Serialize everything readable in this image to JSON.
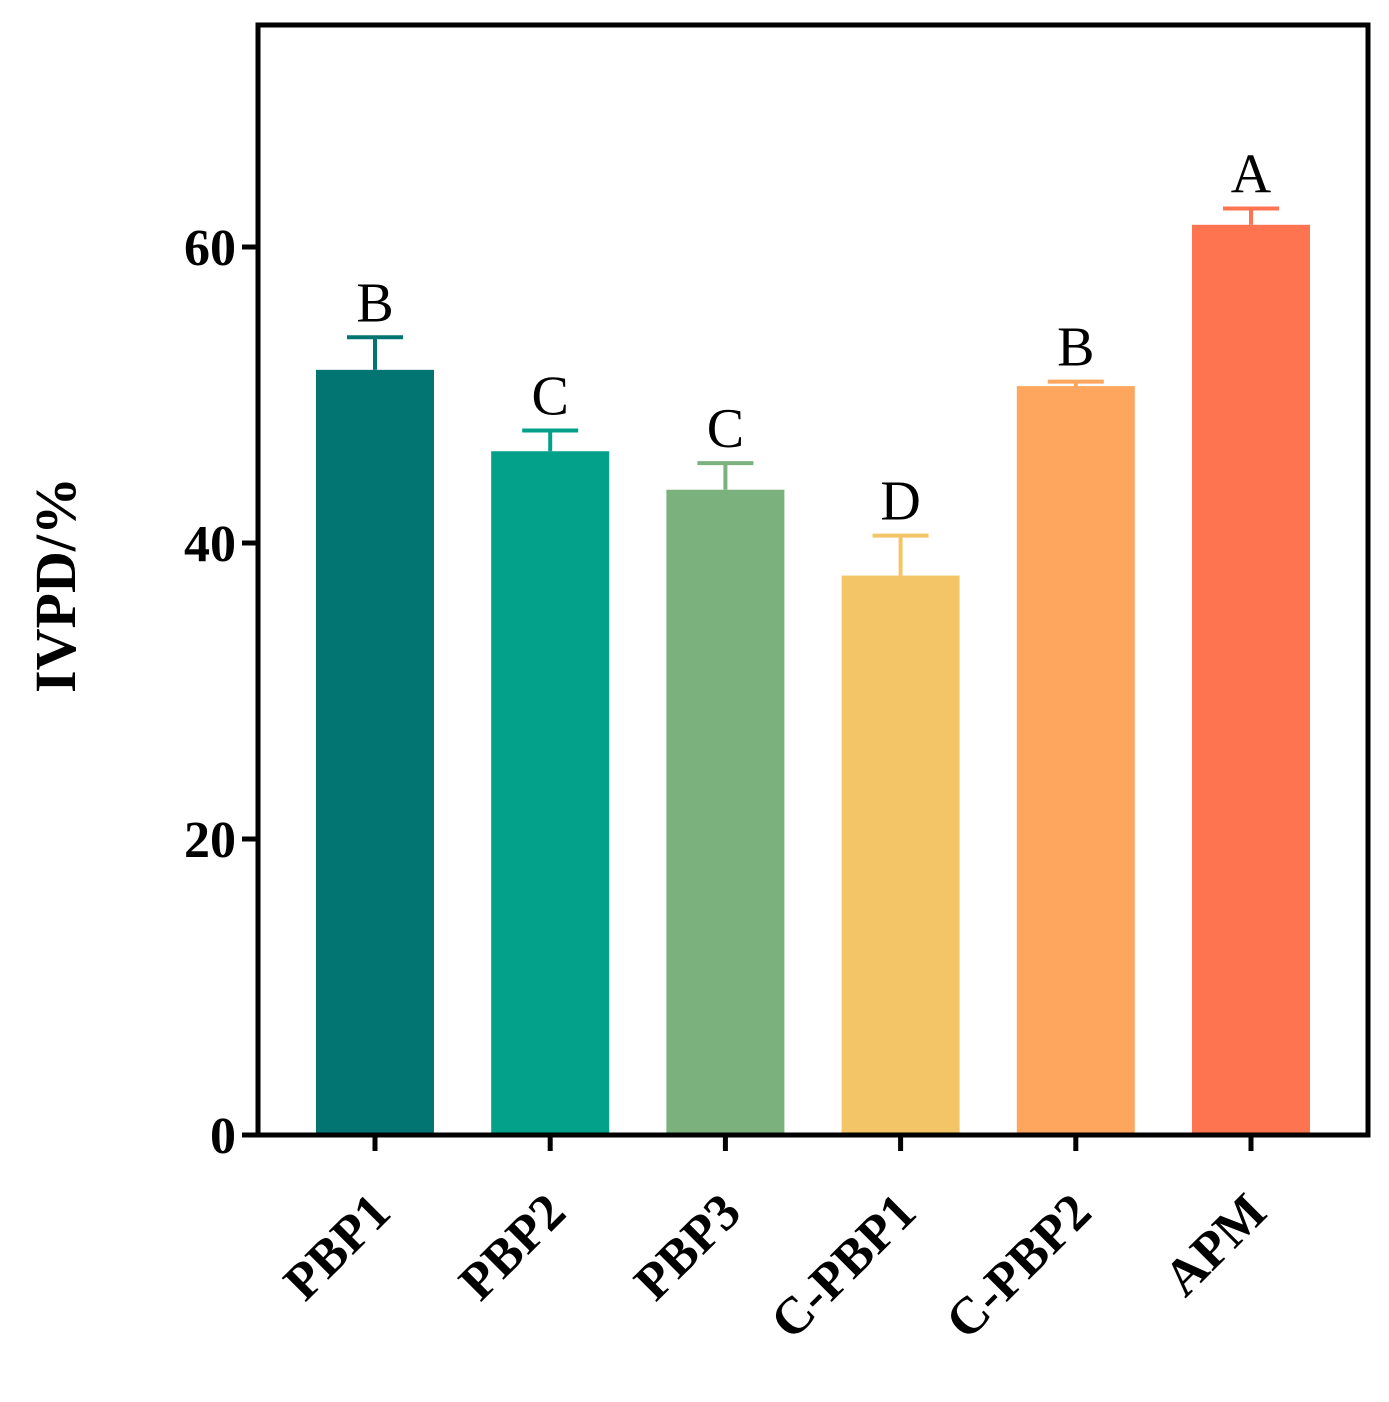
{
  "chart_data": {
    "type": "bar",
    "title": "",
    "xlabel": "",
    "ylabel": "IVPD/%",
    "ylim": [
      0,
      75
    ],
    "yticks": [
      0,
      20,
      40,
      60
    ],
    "ytick_labels": [
      "0",
      "20",
      "40",
      "60"
    ],
    "categories": [
      "PBP1",
      "PBP2",
      "PBP3",
      "C-PBP1",
      "C-PBP2",
      "APM"
    ],
    "values": [
      51.7,
      46.2,
      43.6,
      37.8,
      50.6,
      61.5
    ],
    "errors": [
      2.2,
      1.4,
      1.8,
      2.7,
      0.3,
      1.1
    ],
    "significance": [
      "B",
      "C",
      "C",
      "D",
      "B",
      "A"
    ],
    "colors": [
      "#027573",
      "#03A08A",
      "#7AB17D",
      "#F4C567",
      "#FEA55E",
      "#FE7350"
    ],
    "grid": false,
    "legend": "none"
  }
}
